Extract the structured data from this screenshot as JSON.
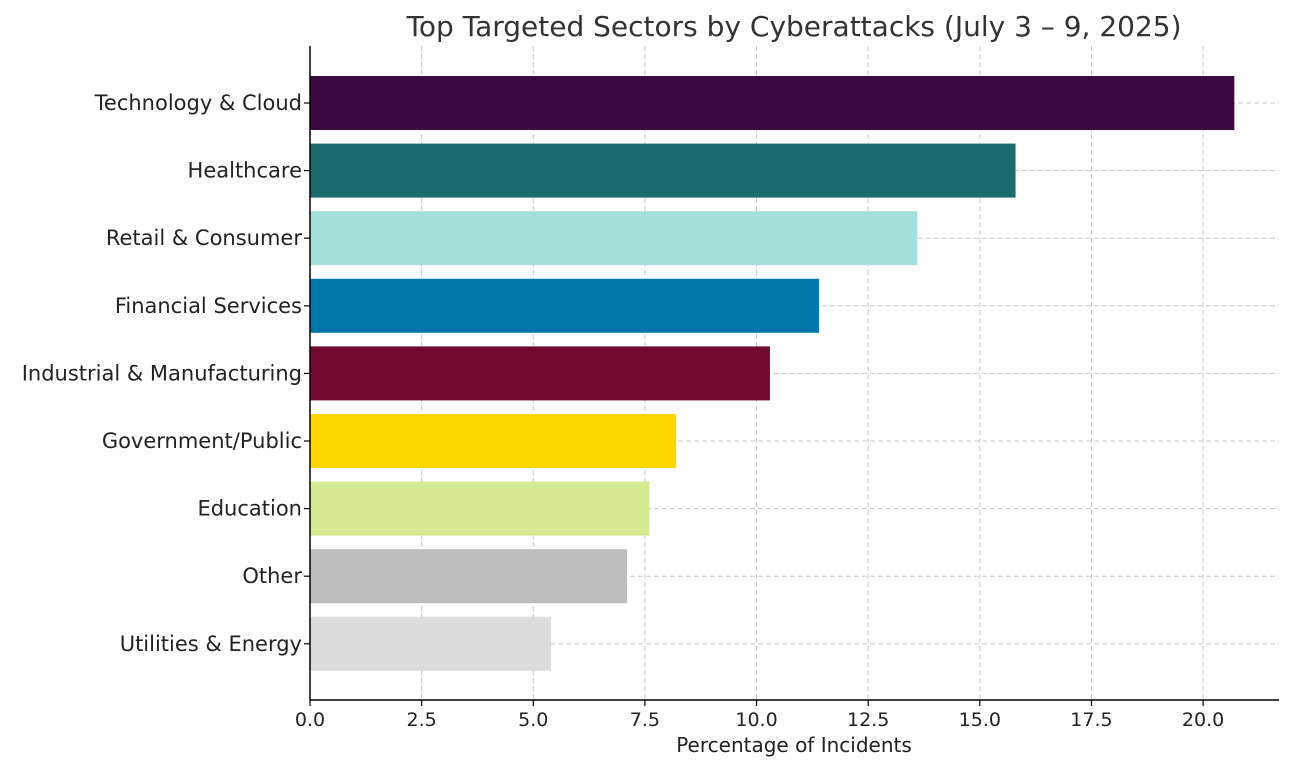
{
  "chart_data": {
    "type": "bar",
    "orientation": "horizontal",
    "title": "Top Targeted Sectors by Cyberattacks (July 3 – 9, 2025)",
    "xlabel": "Percentage of Incidents",
    "ylabel": "",
    "xlim": [
      0,
      21.7
    ],
    "xticks": [
      0,
      2.5,
      5,
      7.5,
      10,
      12.5,
      15,
      17.5,
      20
    ],
    "xtick_labels": [
      "0.0",
      "2.5",
      "5.0",
      "7.5",
      "10.0",
      "12.5",
      "15.0",
      "17.5",
      "20.0"
    ],
    "grid": true,
    "categories": [
      "Technology & Cloud",
      "Healthcare",
      "Retail & Consumer",
      "Financial Services",
      "Industrial & Manufacturing",
      "Government/Public",
      "Education",
      "Other",
      "Utilities & Energy"
    ],
    "values": [
      20.7,
      15.8,
      13.6,
      11.4,
      10.3,
      8.2,
      7.6,
      7.1,
      5.4
    ],
    "colors": [
      "#3b0a40",
      "#1a6b6b",
      "#a3e0d9",
      "#0077a8",
      "#700a30",
      "#ffd700",
      "#d4eb91",
      "#bdbdbd",
      "#dcdcdc"
    ]
  }
}
